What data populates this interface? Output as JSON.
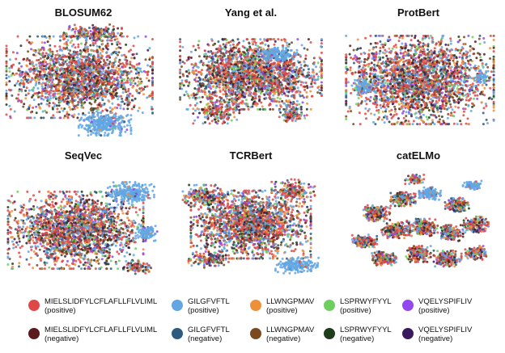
{
  "chart_data": [
    {
      "type": "scatter",
      "title": "BLOSUM62",
      "xlabel": "",
      "ylabel": "",
      "clusters": [
        {
          "cx": -0.05,
          "cy": -0.05,
          "rx": 0.95,
          "ry": 0.72,
          "weight": 0.78,
          "mix": "mixed"
        },
        {
          "cx": 0.12,
          "cy": -0.82,
          "rx": 0.38,
          "ry": 0.16,
          "weight": 0.07,
          "mix": "mixed"
        },
        {
          "cx": 0.28,
          "cy": 0.78,
          "rx": 0.34,
          "ry": 0.2,
          "weight": 0.12,
          "mix": "gilgfvtl_pos"
        }
      ]
    },
    {
      "type": "scatter",
      "title": "Yang et al.",
      "xlabel": "",
      "ylabel": "",
      "clusters": [
        {
          "cx": 0.0,
          "cy": -0.1,
          "rx": 0.92,
          "ry": 0.62,
          "weight": 0.82,
          "mix": "mixed"
        },
        {
          "cx": -0.45,
          "cy": 0.55,
          "rx": 0.3,
          "ry": 0.22,
          "weight": 0.07,
          "mix": "mixed"
        },
        {
          "cx": 0.55,
          "cy": 0.6,
          "rx": 0.18,
          "ry": 0.16,
          "weight": 0.04,
          "mix": "mixed"
        },
        {
          "cx": 0.35,
          "cy": -0.45,
          "rx": 0.25,
          "ry": 0.12,
          "weight": 0.05,
          "mix": "gilgfvtl_pos"
        }
      ]
    },
    {
      "type": "scatter",
      "title": "ProtBert",
      "xlabel": "",
      "ylabel": "",
      "clusters": [
        {
          "cx": 0.02,
          "cy": 0.0,
          "rx": 0.96,
          "ry": 0.78,
          "weight": 0.92,
          "mix": "mixed"
        },
        {
          "cx": -0.72,
          "cy": 0.12,
          "rx": 0.16,
          "ry": 0.14,
          "weight": 0.04,
          "mix": "gilgfvtl_pos"
        },
        {
          "cx": 0.82,
          "cy": -0.05,
          "rx": 0.1,
          "ry": 0.12,
          "weight": 0.02,
          "mix": "gilgfvtl_pos"
        }
      ]
    },
    {
      "type": "scatter",
      "title": "SeqVec",
      "xlabel": "",
      "ylabel": "",
      "clusters": [
        {
          "cx": -0.1,
          "cy": 0.1,
          "rx": 0.88,
          "ry": 0.68,
          "weight": 0.78,
          "mix": "mixed"
        },
        {
          "cx": 0.62,
          "cy": -0.55,
          "rx": 0.3,
          "ry": 0.2,
          "weight": 0.1,
          "mix": "gilgfvtl_pos"
        },
        {
          "cx": 0.82,
          "cy": 0.15,
          "rx": 0.14,
          "ry": 0.14,
          "weight": 0.04,
          "mix": "gilgfvtl_pos"
        },
        {
          "cx": 0.7,
          "cy": 0.75,
          "rx": 0.18,
          "ry": 0.12,
          "weight": 0.04,
          "mix": "mixed"
        }
      ]
    },
    {
      "type": "scatter",
      "title": "TCRBert",
      "xlabel": "",
      "ylabel": "",
      "clusters": [
        {
          "cx": 0.0,
          "cy": 0.0,
          "rx": 0.78,
          "ry": 0.6,
          "weight": 0.7,
          "mix": "mixed"
        },
        {
          "cx": -0.6,
          "cy": -0.5,
          "rx": 0.3,
          "ry": 0.2,
          "weight": 0.08,
          "mix": "mixed"
        },
        {
          "cx": 0.55,
          "cy": -0.6,
          "rx": 0.28,
          "ry": 0.2,
          "weight": 0.07,
          "mix": "mixed"
        },
        {
          "cx": 0.6,
          "cy": 0.72,
          "rx": 0.28,
          "ry": 0.14,
          "weight": 0.07,
          "mix": "gilgfvtl_pos"
        },
        {
          "cx": -0.55,
          "cy": 0.62,
          "rx": 0.26,
          "ry": 0.14,
          "weight": 0.05,
          "mix": "mixed"
        }
      ]
    },
    {
      "type": "scatter",
      "title": "catELMo",
      "xlabel": "",
      "ylabel": "",
      "clusters": [
        {
          "cx": -0.55,
          "cy": -0.2,
          "rx": 0.18,
          "ry": 0.14,
          "weight": 0.08,
          "mix": "mixed"
        },
        {
          "cx": -0.2,
          "cy": -0.45,
          "rx": 0.16,
          "ry": 0.12,
          "weight": 0.07,
          "mix": "mixed"
        },
        {
          "cx": 0.15,
          "cy": -0.55,
          "rx": 0.14,
          "ry": 0.11,
          "weight": 0.06,
          "mix": "gilgfvtl_pos"
        },
        {
          "cx": 0.5,
          "cy": -0.35,
          "rx": 0.16,
          "ry": 0.12,
          "weight": 0.07,
          "mix": "mixed"
        },
        {
          "cx": -0.7,
          "cy": 0.3,
          "rx": 0.16,
          "ry": 0.12,
          "weight": 0.07,
          "mix": "mixed"
        },
        {
          "cx": -0.3,
          "cy": 0.1,
          "rx": 0.18,
          "ry": 0.14,
          "weight": 0.08,
          "mix": "mixed"
        },
        {
          "cx": 0.05,
          "cy": 0.05,
          "rx": 0.2,
          "ry": 0.15,
          "weight": 0.09,
          "mix": "mixed"
        },
        {
          "cx": 0.42,
          "cy": 0.15,
          "rx": 0.16,
          "ry": 0.14,
          "weight": 0.07,
          "mix": "mixed"
        },
        {
          "cx": 0.75,
          "cy": 0.0,
          "rx": 0.16,
          "ry": 0.14,
          "weight": 0.06,
          "mix": "mixed"
        },
        {
          "cx": -0.45,
          "cy": 0.6,
          "rx": 0.16,
          "ry": 0.12,
          "weight": 0.07,
          "mix": "mixed"
        },
        {
          "cx": 0.0,
          "cy": 0.52,
          "rx": 0.16,
          "ry": 0.14,
          "weight": 0.08,
          "mix": "mixed"
        },
        {
          "cx": 0.38,
          "cy": 0.6,
          "rx": 0.18,
          "ry": 0.14,
          "weight": 0.08,
          "mix": "mixed"
        },
        {
          "cx": 0.75,
          "cy": 0.5,
          "rx": 0.14,
          "ry": 0.12,
          "weight": 0.05,
          "mix": "mixed"
        },
        {
          "cx": 0.7,
          "cy": -0.7,
          "rx": 0.12,
          "ry": 0.08,
          "weight": 0.03,
          "mix": "gilgfvtl_pos"
        },
        {
          "cx": -0.05,
          "cy": -0.8,
          "rx": 0.12,
          "ry": 0.08,
          "weight": 0.03,
          "mix": "mixed"
        }
      ]
    }
  ],
  "mixes": {
    "mixed": [
      0.28,
      0.06,
      0.17,
      0.08,
      0.12,
      0.09,
      0.06,
      0.06,
      0.04,
      0.04
    ],
    "gilgfvtl_pos": [
      0.02,
      0.0,
      0.9,
      0.02,
      0.02,
      0.0,
      0.02,
      0.0,
      0.02,
      0.0
    ]
  },
  "legend": {
    "items": [
      {
        "label": "MIELSLIDFYLCFLAFLLFLVLIML",
        "sub": "(positive)",
        "color": "#e04848"
      },
      {
        "label": "MIELSLIDFYLCFLAFLLFLVLIML",
        "sub": "(negative)",
        "color": "#5a1a1e"
      },
      {
        "label": "GILGFVFTL",
        "sub": "(positive)",
        "color": "#62a6e4"
      },
      {
        "label": "GILGFVFTL",
        "sub": "(negative)",
        "color": "#2e5a7e"
      },
      {
        "label": "LLWNGPMAV",
        "sub": "(positive)",
        "color": "#ee8f3a"
      },
      {
        "label": "LLWNGPMAV",
        "sub": "(negative)",
        "color": "#7a4a1e"
      },
      {
        "label": "LSPRWYFYYL",
        "sub": "(positive)",
        "color": "#6ecf5e"
      },
      {
        "label": "LSPRWYFYYL",
        "sub": "(negative)",
        "color": "#1f3d1c"
      },
      {
        "label": "VQELYSPIFLIV",
        "sub": "(positive)",
        "color": "#9347ee"
      },
      {
        "label": "VQELYSPIFLIV",
        "sub": "(negative)",
        "color": "#3a1a5e"
      }
    ]
  }
}
